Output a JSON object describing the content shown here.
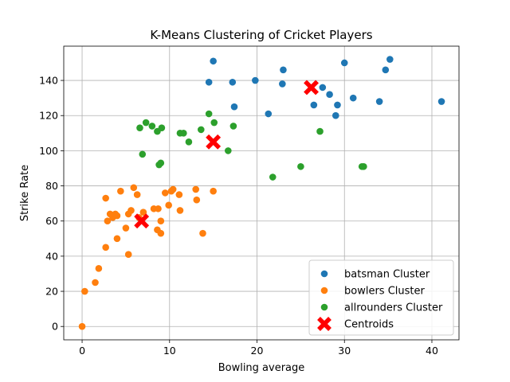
{
  "chart_data": {
    "type": "scatter",
    "title": "K-Means Clustering of Cricket Players",
    "xlabel": "Bowling average",
    "ylabel": "Strike Rate",
    "xlim": [
      -2.1,
      43.1
    ],
    "ylim": [
      -7.6,
      159.5
    ],
    "xticks": [
      0,
      10,
      20,
      30,
      40
    ],
    "yticks": [
      0,
      20,
      40,
      60,
      80,
      100,
      120,
      140
    ],
    "grid": true,
    "legend_position": "lower-right",
    "series": [
      {
        "name": "batsman Cluster",
        "color": "#1f77b4",
        "marker": "circle",
        "points": [
          [
            15.0,
            151
          ],
          [
            14.5,
            139
          ],
          [
            17.2,
            139
          ],
          [
            19.8,
            140
          ],
          [
            23.0,
            146
          ],
          [
            22.9,
            138
          ],
          [
            17.4,
            125
          ],
          [
            21.3,
            121
          ],
          [
            26.5,
            126
          ],
          [
            27.5,
            136
          ],
          [
            28.3,
            132
          ],
          [
            29.2,
            126
          ],
          [
            29.0,
            120
          ],
          [
            30.0,
            150
          ],
          [
            31.0,
            130
          ],
          [
            34.0,
            128
          ],
          [
            34.7,
            146
          ],
          [
            35.2,
            152
          ],
          [
            41.1,
            128
          ]
        ]
      },
      {
        "name": "bowlers Cluster",
        "color": "#ff7f0e",
        "marker": "circle",
        "points": [
          [
            0.0,
            0
          ],
          [
            0.3,
            20
          ],
          [
            1.5,
            25
          ],
          [
            1.9,
            33
          ],
          [
            2.7,
            45
          ],
          [
            2.7,
            73
          ],
          [
            2.9,
            60
          ],
          [
            3.2,
            64
          ],
          [
            3.5,
            62
          ],
          [
            3.8,
            64
          ],
          [
            4.0,
            63
          ],
          [
            4.0,
            50
          ],
          [
            4.4,
            77
          ],
          [
            5.0,
            56
          ],
          [
            5.3,
            41
          ],
          [
            5.3,
            64
          ],
          [
            5.6,
            66
          ],
          [
            5.9,
            79
          ],
          [
            6.3,
            75
          ],
          [
            6.5,
            62
          ],
          [
            7.0,
            65
          ],
          [
            8.2,
            67
          ],
          [
            8.6,
            55
          ],
          [
            8.7,
            67
          ],
          [
            9.0,
            53
          ],
          [
            9.0,
            60
          ],
          [
            9.5,
            76
          ],
          [
            9.9,
            69
          ],
          [
            10.2,
            77
          ],
          [
            10.4,
            78
          ],
          [
            11.1,
            75
          ],
          [
            11.2,
            66
          ],
          [
            13.0,
            78
          ],
          [
            13.1,
            72
          ],
          [
            13.8,
            53
          ],
          [
            15.0,
            77
          ]
        ]
      },
      {
        "name": "allrounders Cluster",
        "color": "#2ca02c",
        "marker": "circle",
        "points": [
          [
            6.6,
            113
          ],
          [
            6.9,
            98
          ],
          [
            7.3,
            116
          ],
          [
            8.0,
            114
          ],
          [
            8.6,
            111
          ],
          [
            9.1,
            113
          ],
          [
            8.8,
            92
          ],
          [
            9.0,
            93
          ],
          [
            11.2,
            110
          ],
          [
            11.6,
            110
          ],
          [
            12.2,
            105
          ],
          [
            13.6,
            112
          ],
          [
            14.5,
            121
          ],
          [
            15.1,
            116
          ],
          [
            16.7,
            100
          ],
          [
            17.3,
            114
          ],
          [
            21.8,
            85
          ],
          [
            25.0,
            91
          ],
          [
            27.2,
            111
          ],
          [
            32.0,
            91
          ],
          [
            32.2,
            91
          ]
        ]
      }
    ],
    "centroids": {
      "name": "Centroids",
      "color": "#ff0000",
      "marker": "x",
      "points": [
        [
          26.2,
          136
        ],
        [
          15.0,
          105
        ],
        [
          6.8,
          60
        ]
      ]
    }
  }
}
